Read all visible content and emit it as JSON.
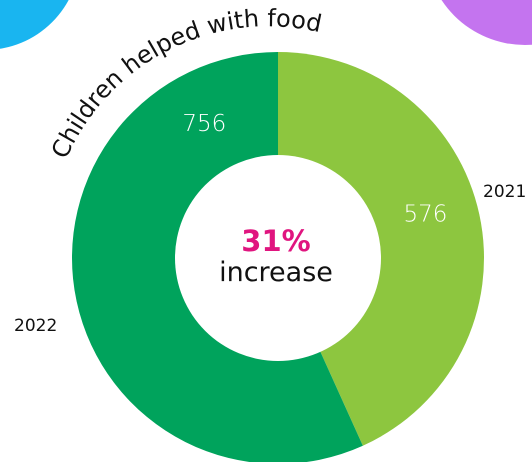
{
  "chart_data": {
    "type": "pie",
    "title": "Children helped with food",
    "categories": [
      "2021",
      "2022"
    ],
    "values": [
      576,
      756
    ],
    "colors": [
      "#8dc63f",
      "#00a35c"
    ],
    "center": {
      "percent": "31%",
      "word": "increase"
    },
    "donut": true
  },
  "theme": {
    "accent": "#e0157f",
    "decor_left": "#19b5f0",
    "decor_right": "#c474ef"
  }
}
